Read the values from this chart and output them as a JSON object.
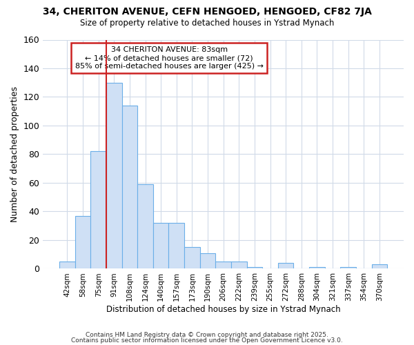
{
  "title1": "34, CHERITON AVENUE, CEFN HENGOED, HENGOED, CF82 7JA",
  "title2": "Size of property relative to detached houses in Ystrad Mynach",
  "xlabel": "Distribution of detached houses by size in Ystrad Mynach",
  "ylabel": "Number of detached properties",
  "bar_values": [
    5,
    37,
    82,
    130,
    114,
    59,
    32,
    32,
    15,
    11,
    5,
    5,
    1,
    0,
    4,
    0,
    1,
    0,
    1,
    0,
    3
  ],
  "bar_labels": [
    "42sqm",
    "58sqm",
    "75sqm",
    "91sqm",
    "108sqm",
    "124sqm",
    "140sqm",
    "157sqm",
    "173sqm",
    "190sqm",
    "206sqm",
    "222sqm",
    "239sqm",
    "255sqm",
    "272sqm",
    "288sqm",
    "304sqm",
    "321sqm",
    "337sqm",
    "354sqm",
    "370sqm"
  ],
  "bar_color": "#cfe0f5",
  "bar_edge_color": "#6aaee8",
  "background_color": "#ffffff",
  "grid_color": "#d0dae8",
  "vline_x": 3.0,
  "vline_color": "#cc2222",
  "annotation_title": "34 CHERITON AVENUE: 83sqm",
  "annotation_line1": "← 14% of detached houses are smaller (72)",
  "annotation_line2": "85% of semi-detached houses are larger (425) →",
  "annotation_box_color": "#ffffff",
  "annotation_box_edge": "#cc2222",
  "ylim": [
    0,
    160
  ],
  "yticks": [
    0,
    20,
    40,
    60,
    80,
    100,
    120,
    140,
    160
  ],
  "footer1": "Contains HM Land Registry data © Crown copyright and database right 2025.",
  "footer2": "Contains public sector information licensed under the Open Government Licence v3.0."
}
